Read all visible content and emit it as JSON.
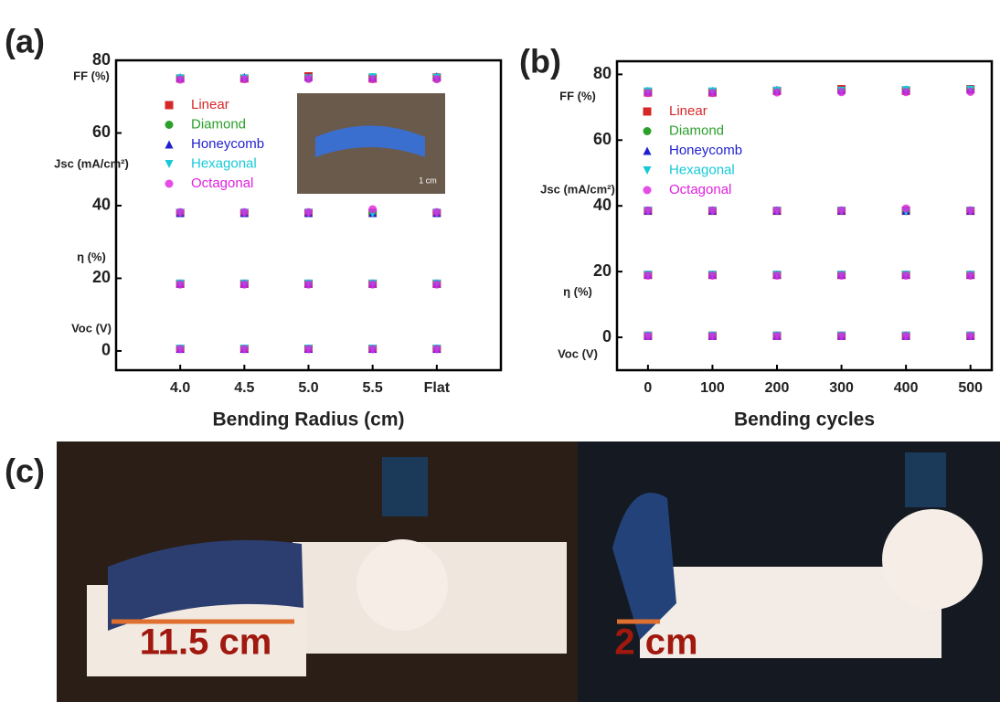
{
  "chart_data": [
    {
      "type": "scatter",
      "panel_label": "(a)",
      "x_label": "Bending Radius (cm)",
      "categories": [
        "4.0",
        "4.5",
        "5.0",
        "5.5",
        "Flat"
      ],
      "ylim": [
        -5.3,
        80
      ],
      "yticks": [
        0,
        20,
        40,
        60,
        80
      ],
      "annotations": [
        "FF (%)",
        "Jsc (mA/cm²)",
        "η (%)",
        "Voc (V)"
      ],
      "inset_label": "1 cm",
      "legend": "upper left",
      "series": [
        {
          "name": "Linear",
          "color": "#d62728",
          "marker": "square",
          "values": [
            [
              75,
              75,
              75.6,
              75,
              75.3
            ],
            [
              38,
              38,
              38,
              38,
              38
            ],
            [
              18.5,
              18.5,
              18.5,
              18.5,
              18.5
            ],
            [
              0.6,
              0.6,
              0.6,
              0.6,
              0.6
            ]
          ]
        },
        {
          "name": "Diamond",
          "color": "#2ca02c",
          "marker": "circle",
          "values": [
            [
              75,
              75,
              75,
              75,
              75
            ],
            [
              38,
              38,
              38,
              38,
              38
            ],
            [
              18.5,
              18.5,
              18.5,
              18.5,
              18.5
            ],
            [
              0.6,
              0.6,
              0.6,
              0.6,
              0.6
            ]
          ]
        },
        {
          "name": "Honeycomb",
          "color": "#1f1fd0",
          "marker": "triangle",
          "values": [
            [
              75.3,
              75.4,
              75.4,
              75.4,
              75.6
            ],
            [
              38,
              38,
              38,
              38,
              38
            ],
            [
              18.6,
              18.6,
              18.6,
              18.6,
              18.6
            ],
            [
              0.6,
              0.6,
              0.6,
              0.6,
              0.6
            ]
          ]
        },
        {
          "name": "Hexagonal",
          "color": "#17c9d8",
          "marker": "triangle-down",
          "values": [
            [
              75,
              75,
              75,
              75.3,
              75.2
            ],
            [
              38,
              38,
              38,
              37.8,
              38
            ],
            [
              18.5,
              18.5,
              18.5,
              18.5,
              18.5
            ],
            [
              0.6,
              0.6,
              0.6,
              0.6,
              0.6
            ]
          ]
        },
        {
          "name": "Octagonal",
          "color": "#e020e0",
          "marker": "half-circle",
          "values": [
            [
              74.7,
              74.8,
              74.9,
              74.8,
              74.8
            ],
            [
              38.2,
              38.2,
              38.2,
              39,
              38.2
            ],
            [
              18.3,
              18.3,
              18.3,
              18.3,
              18.3
            ],
            [
              0.5,
              0.5,
              0.5,
              0.5,
              0.5
            ]
          ]
        }
      ]
    },
    {
      "type": "scatter",
      "panel_label": "(b)",
      "x_label": "Bending cycles",
      "x": [
        0,
        100,
        200,
        300,
        400,
        500
      ],
      "xlim": [
        -48,
        533
      ],
      "xticks": [
        0,
        100,
        200,
        300,
        400,
        500
      ],
      "ylim": [
        -10,
        84
      ],
      "yticks": [
        0,
        20,
        40,
        60,
        80
      ],
      "annotations": [
        "FF (%)",
        "Jsc (mA/cm²)",
        "η (%)",
        "Voc (V)"
      ],
      "legend": "upper left",
      "series": [
        {
          "name": "Linear",
          "color": "#d62728",
          "marker": "square",
          "values": [
            [
              74.5,
              74.5,
              75,
              75.5,
              75,
              75.5
            ],
            [
              38.5,
              38.5,
              38.5,
              38.5,
              38.5,
              38.5
            ],
            [
              19,
              19,
              19,
              19,
              19,
              19
            ],
            [
              0.5,
              0.5,
              0.5,
              0.5,
              0.5,
              0.5
            ]
          ]
        },
        {
          "name": "Diamond",
          "color": "#2ca02c",
          "marker": "circle",
          "values": [
            [
              74.5,
              74.5,
              75,
              75,
              75,
              75.2
            ],
            [
              38.5,
              38.5,
              38.5,
              38.5,
              38.5,
              38.5
            ],
            [
              19,
              19,
              19,
              19,
              19,
              19
            ],
            [
              0.5,
              0.5,
              0.5,
              0.5,
              0.5,
              0.5
            ]
          ]
        },
        {
          "name": "Honeycomb",
          "color": "#1f1fd0",
          "marker": "triangle",
          "values": [
            [
              75,
              75,
              75.3,
              75.3,
              75.4,
              75.6
            ],
            [
              38.6,
              38.6,
              38.6,
              38.6,
              38.6,
              38.6
            ],
            [
              19.1,
              19.1,
              19.1,
              19.1,
              19.1,
              19.1
            ],
            [
              0.5,
              0.5,
              0.5,
              0.5,
              0.5,
              0.5
            ]
          ]
        },
        {
          "name": "Hexagonal",
          "color": "#17c9d8",
          "marker": "triangle-down",
          "values": [
            [
              74.8,
              74.8,
              75,
              75,
              75.2,
              75.3
            ],
            [
              38.5,
              38.5,
              38.5,
              38.5,
              38.2,
              38.5
            ],
            [
              19,
              19,
              19,
              19,
              19,
              19
            ],
            [
              0.5,
              0.5,
              0.5,
              0.5,
              0.5,
              0.5
            ]
          ]
        },
        {
          "name": "Octagonal",
          "color": "#e020e0",
          "marker": "half-circle",
          "values": [
            [
              74.3,
              74.3,
              74.5,
              74.6,
              74.6,
              74.7
            ],
            [
              38.6,
              38.6,
              38.6,
              38.6,
              39.2,
              38.6
            ],
            [
              18.8,
              18.8,
              18.8,
              18.8,
              18.8,
              18.8
            ],
            [
              0.4,
              0.4,
              0.4,
              0.4,
              0.4,
              0.4
            ]
          ]
        }
      ]
    }
  ],
  "photo": {
    "panel_label": "(c)",
    "left_length": "11.5 cm",
    "right_length": "2 cm"
  }
}
